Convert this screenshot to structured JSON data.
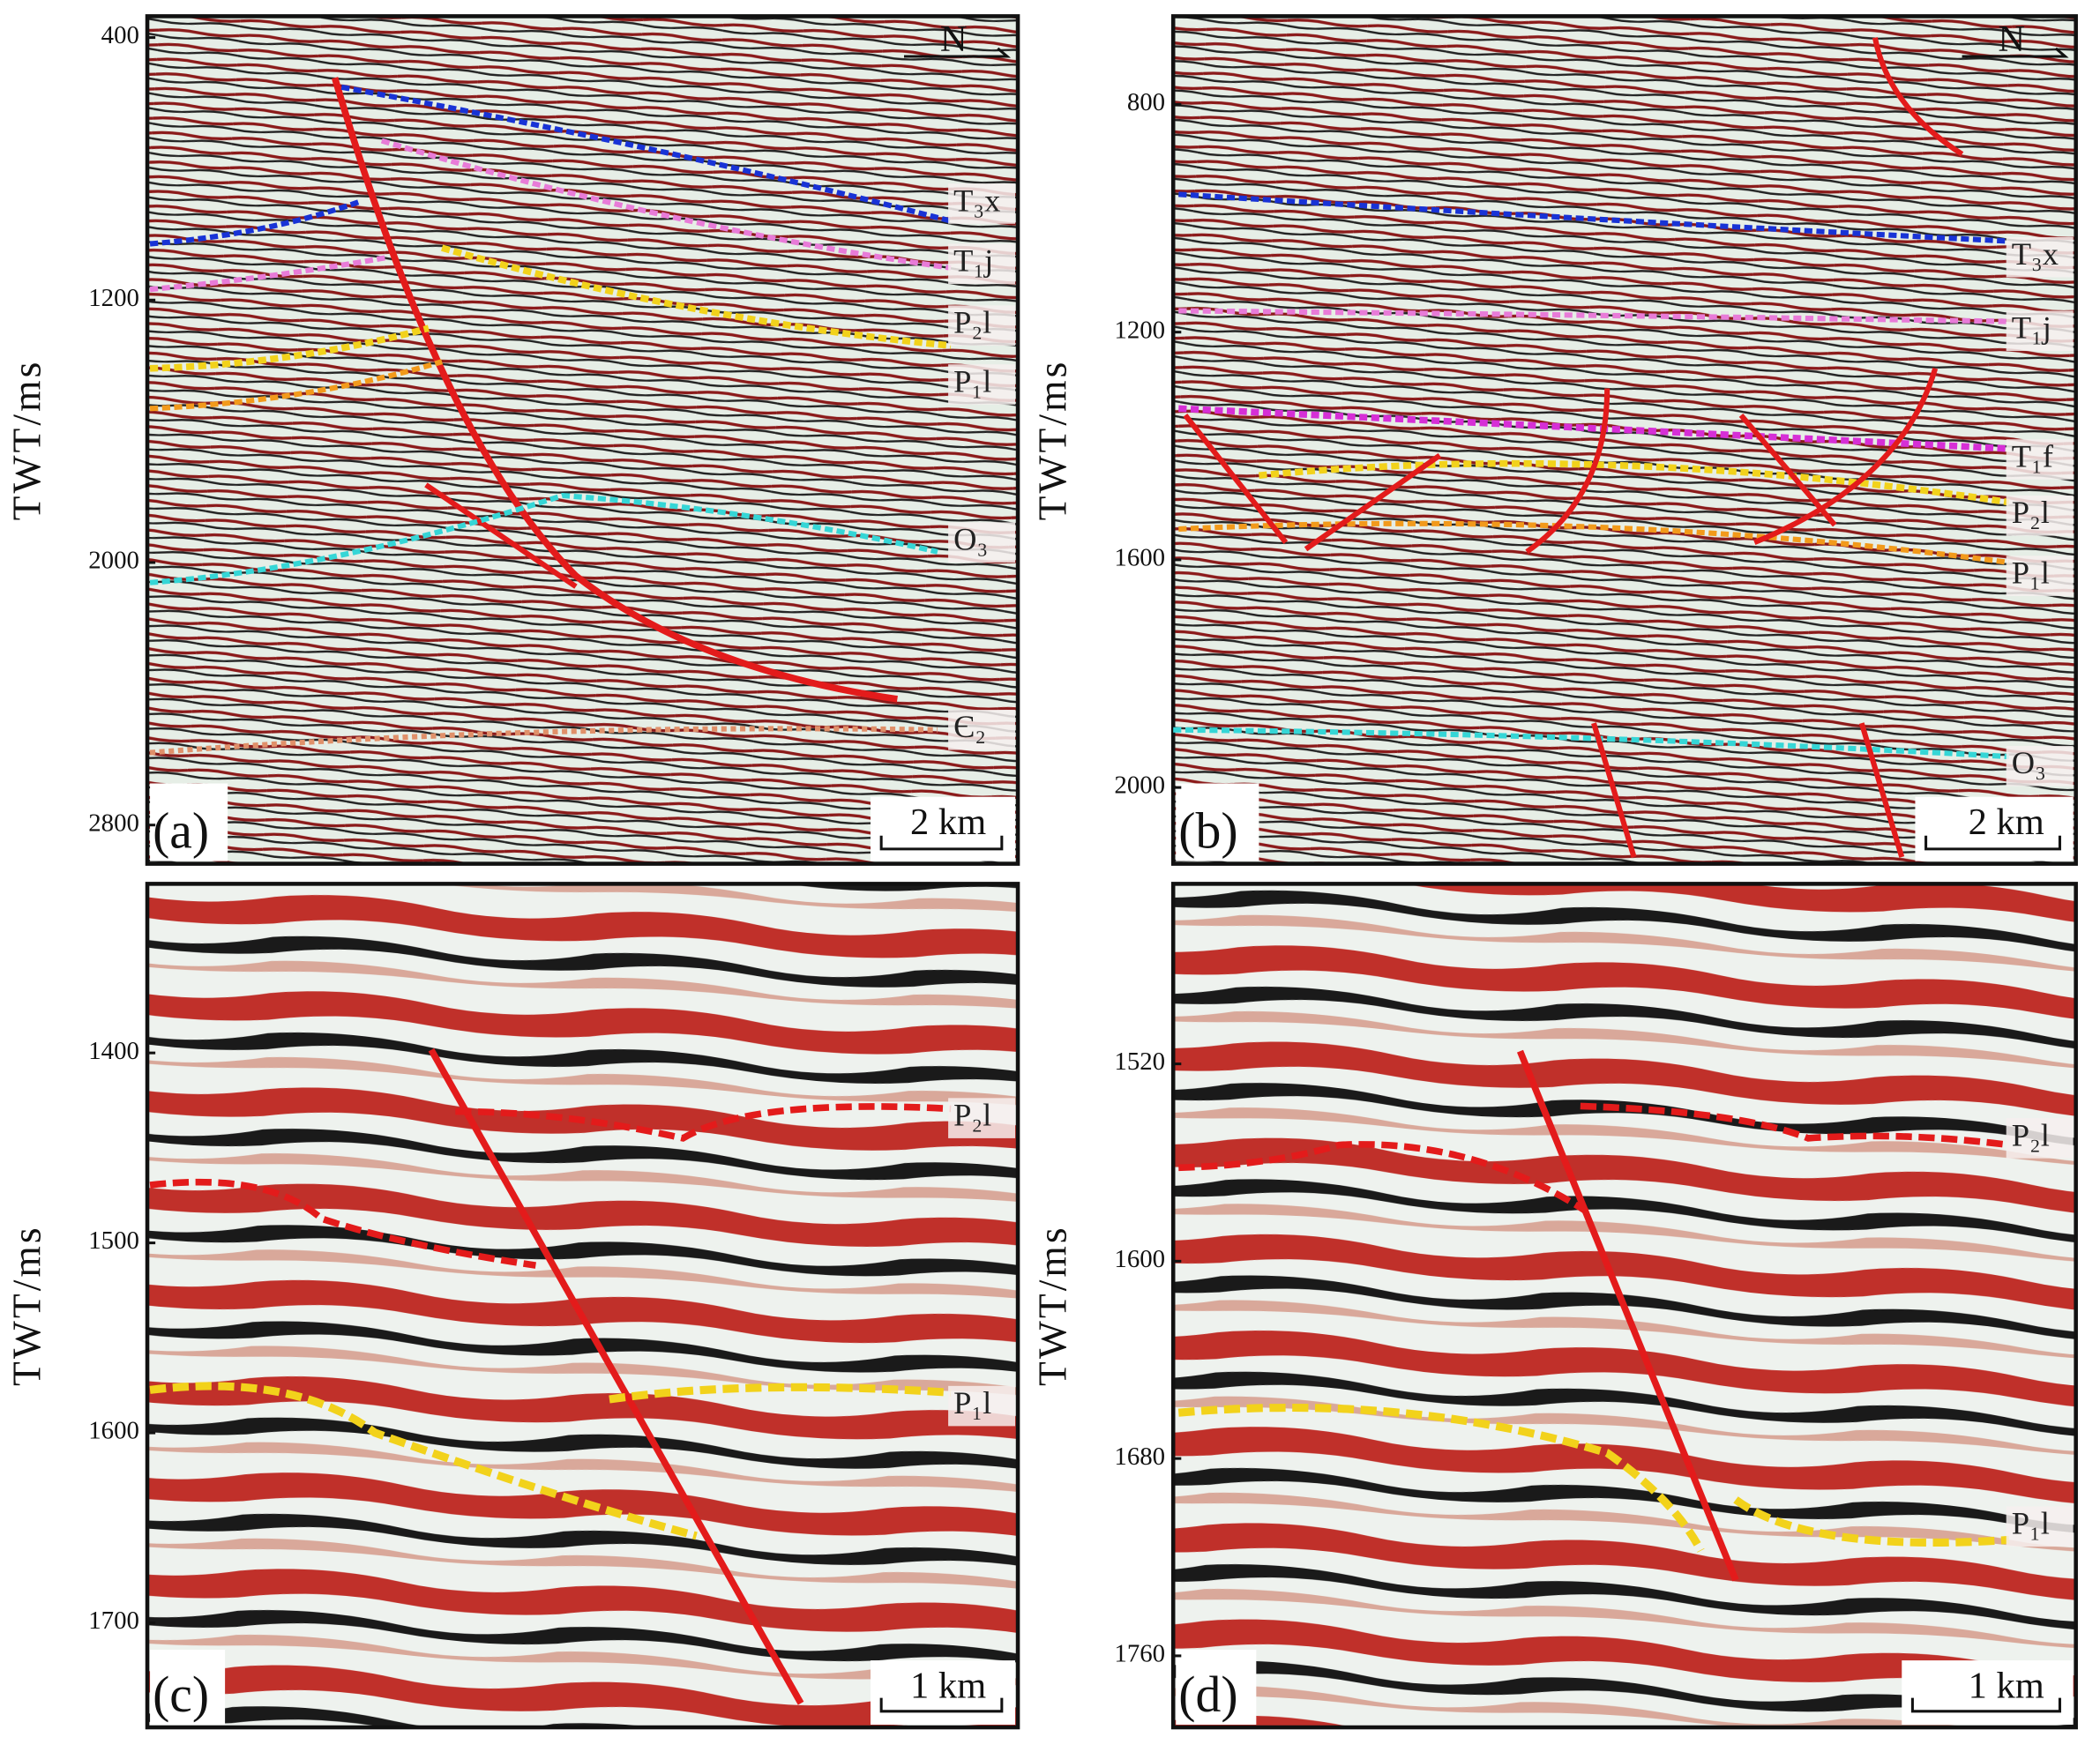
{
  "panels": [
    {
      "label": "(a)",
      "y_axis_label": "TWT/ms",
      "ylim": [
        335,
        2918
      ],
      "yticks": [
        400,
        1200,
        2000,
        2800
      ],
      "horizons": [
        "T₃x",
        "T₁j",
        "P₂l",
        "P₁l",
        "O₃",
        "Є₂"
      ],
      "scale_bar": "2 km",
      "north": "N"
    },
    {
      "label": "(b)",
      "y_axis_label": "TWT/ms",
      "ylim": [
        645,
        2134
      ],
      "yticks": [
        800,
        1200,
        1600,
        2000
      ],
      "horizons": [
        "T₃x",
        "T₁j",
        "T₁f",
        "P₂l",
        "P₁l",
        "O₃"
      ],
      "scale_bar": "2 km",
      "north": "N"
    },
    {
      "label": "(c)",
      "y_axis_label": "TWT/ms",
      "ylim": [
        1311,
        1755
      ],
      "yticks": [
        1400,
        1500,
        1600,
        1700
      ],
      "horizons": [
        "P₂l",
        "P₁l"
      ],
      "scale_bar": "1 km"
    },
    {
      "label": "(d)",
      "y_axis_label": "TWT/ms",
      "ylim": [
        1447,
        1789
      ],
      "yticks": [
        1520,
        1600,
        1680,
        1760
      ],
      "horizons": [
        "P₂l",
        "P₁l"
      ],
      "scale_bar": "1 km"
    }
  ]
}
